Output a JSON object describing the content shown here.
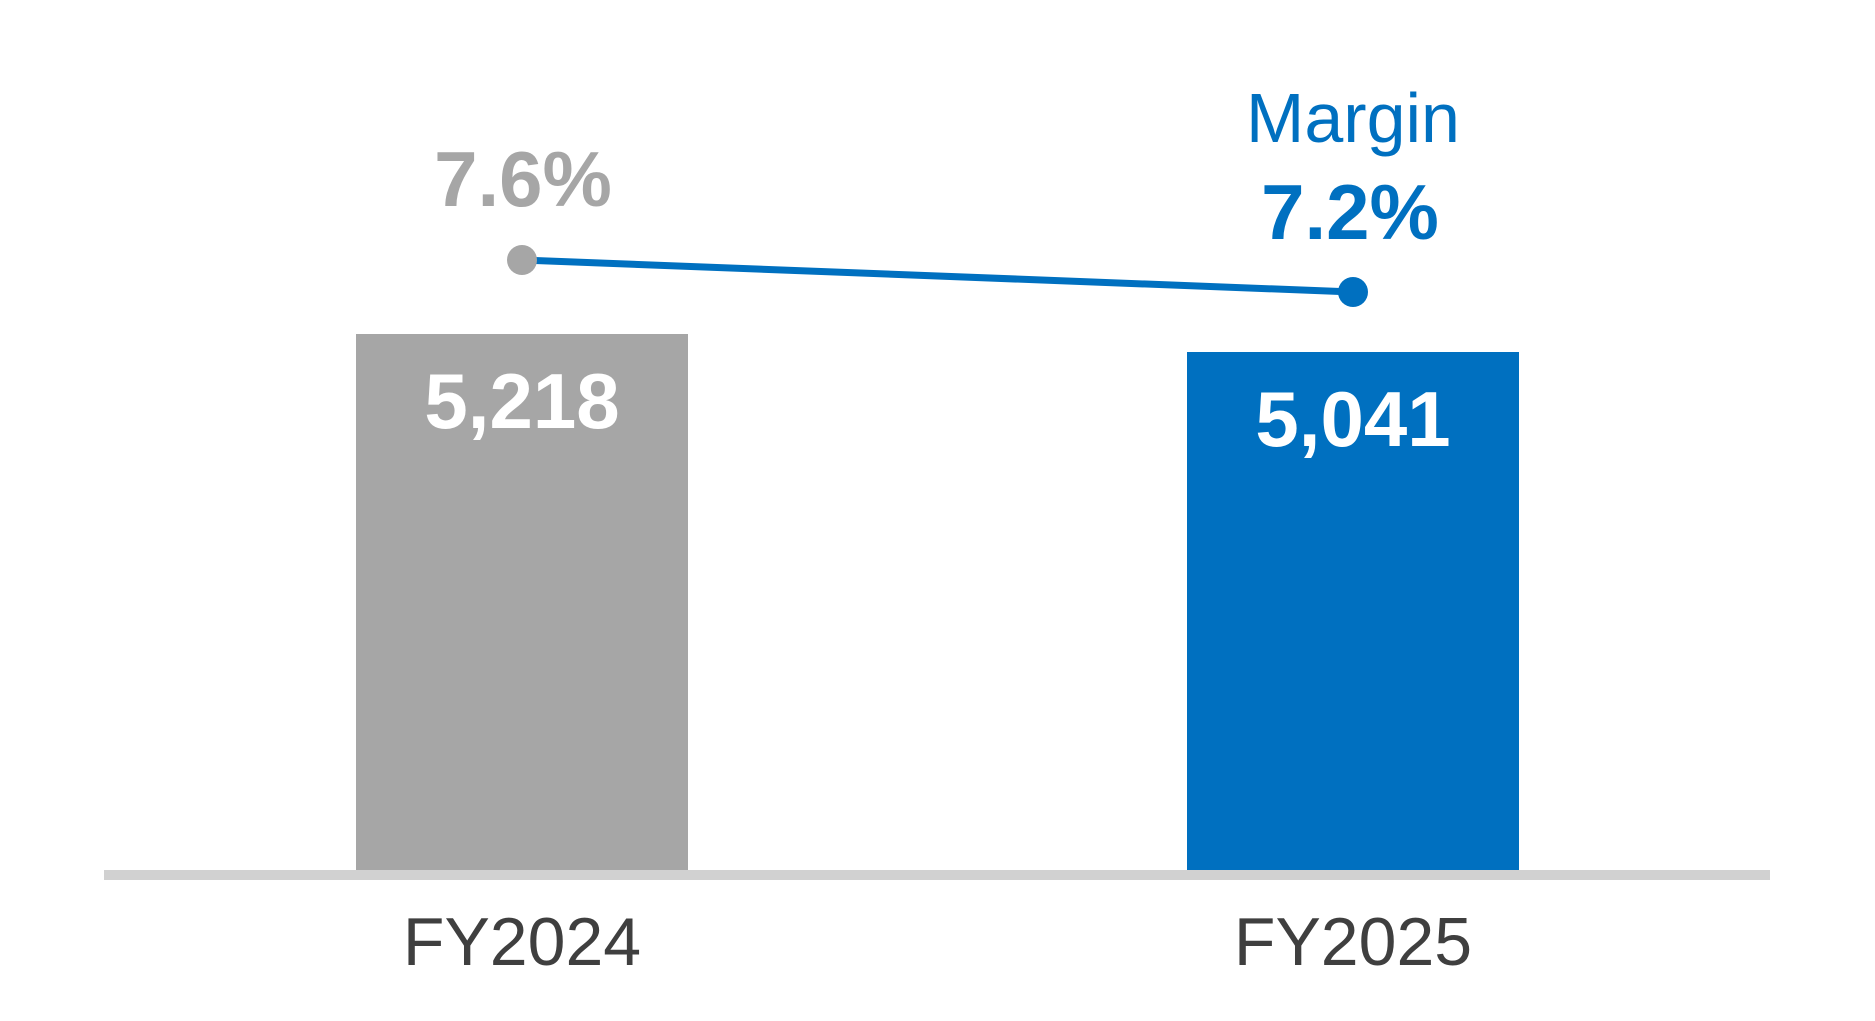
{
  "chart_data": {
    "type": "bar",
    "subtype": "bar-line-combo",
    "title": "",
    "categories": [
      "FY2024",
      "FY2025"
    ],
    "series": [
      {
        "name": "bars",
        "type": "bar",
        "values": [
          5218,
          5041
        ],
        "labels": [
          "5,218",
          "5,041"
        ],
        "colors": [
          "#a6a6a6",
          "#0070c0"
        ]
      },
      {
        "name": "margin-line",
        "type": "line",
        "values": [
          7.6,
          7.2
        ],
        "labels": [
          "7.6%",
          "7.2%"
        ],
        "line_color": "#0070c0",
        "marker_colors": [
          "#a6a6a6",
          "#0070c0"
        ]
      }
    ],
    "annotations": {
      "margin_title": "Margin"
    },
    "xlabel": "",
    "ylabel": "",
    "grid": false,
    "legend_position": "none",
    "baseline_color": "#d1d1d1",
    "axis_label_color": "#3f3f3f",
    "bar_value_label_color": "#ffffff"
  }
}
